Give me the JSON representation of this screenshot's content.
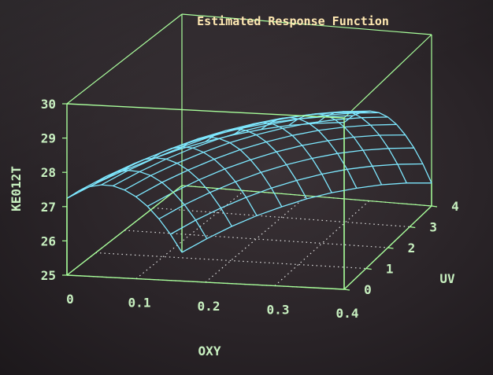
{
  "chart_data": {
    "type": "surface",
    "title": "Estimated Response Function",
    "xlabel": "OXY",
    "ylabel": "UV",
    "zlabel": "KE012T",
    "x_ticks": [
      "0",
      "0.1",
      "0.2",
      "0.3",
      "0.4"
    ],
    "y_ticks": [
      "0",
      "1",
      "2",
      "3",
      "4"
    ],
    "z_ticks": [
      "25",
      "26",
      "27",
      "28",
      "29",
      "30"
    ],
    "xlim": [
      0,
      0.4
    ],
    "ylim": [
      0,
      4
    ],
    "zlim": [
      25,
      30
    ],
    "grid": true,
    "x": [
      0,
      0.04,
      0.08,
      0.12,
      0.16,
      0.2,
      0.24,
      0.28,
      0.32,
      0.36,
      0.4
    ],
    "y": [
      0,
      0.4,
      0.8,
      1.2,
      1.6,
      2.0,
      2.4,
      2.8,
      3.2,
      3.6,
      4.0
    ],
    "z": [
      [
        27.24,
        27.7,
        28.12,
        28.49,
        28.82,
        29.1,
        29.34,
        29.54,
        29.7,
        29.8,
        29.87
      ],
      [
        27.19,
        27.66,
        28.07,
        28.44,
        28.77,
        29.06,
        29.29,
        29.49,
        29.64,
        29.75,
        29.82
      ],
      [
        27.06,
        27.53,
        27.94,
        28.31,
        28.64,
        28.92,
        29.16,
        29.36,
        29.51,
        29.62,
        29.68
      ],
      [
        26.85,
        27.32,
        27.73,
        28.1,
        28.43,
        28.71,
        28.95,
        29.14,
        29.3,
        29.41,
        29.47
      ],
      [
        26.56,
        27.02,
        27.44,
        27.81,
        28.13,
        28.42,
        28.66,
        28.85,
        29.01,
        29.12,
        29.18
      ],
      [
        26.18,
        26.65,
        27.06,
        27.43,
        27.76,
        28.04,
        28.28,
        28.48,
        28.63,
        28.74,
        28.81
      ],
      [
        25.72,
        26.19,
        26.6,
        26.97,
        27.3,
        27.58,
        27.82,
        28.02,
        28.17,
        28.28,
        28.35
      ],
      [
        25.18,
        25.64,
        26.06,
        26.43,
        26.75,
        27.04,
        27.28,
        27.47,
        27.63,
        27.74,
        27.8
      ],
      [
        24.55,
        25.02,
        25.43,
        25.8,
        26.13,
        26.41,
        26.65,
        26.85,
        27.0,
        27.11,
        27.18
      ],
      [
        23.84,
        24.31,
        24.72,
        25.09,
        25.42,
        25.7,
        25.94,
        26.14,
        26.29,
        26.4,
        26.47
      ],
      [
        23.05,
        23.51,
        23.93,
        24.3,
        24.62,
        24.91,
        25.15,
        25.34,
        25.5,
        25.61,
        25.67
      ]
    ],
    "colors": {
      "surface": "#7ee8ff",
      "box": "#a8ff9a",
      "floor_grid": "#e0e0e0",
      "labels": "#c8f0c0",
      "title": "#ffe8b0"
    }
  }
}
